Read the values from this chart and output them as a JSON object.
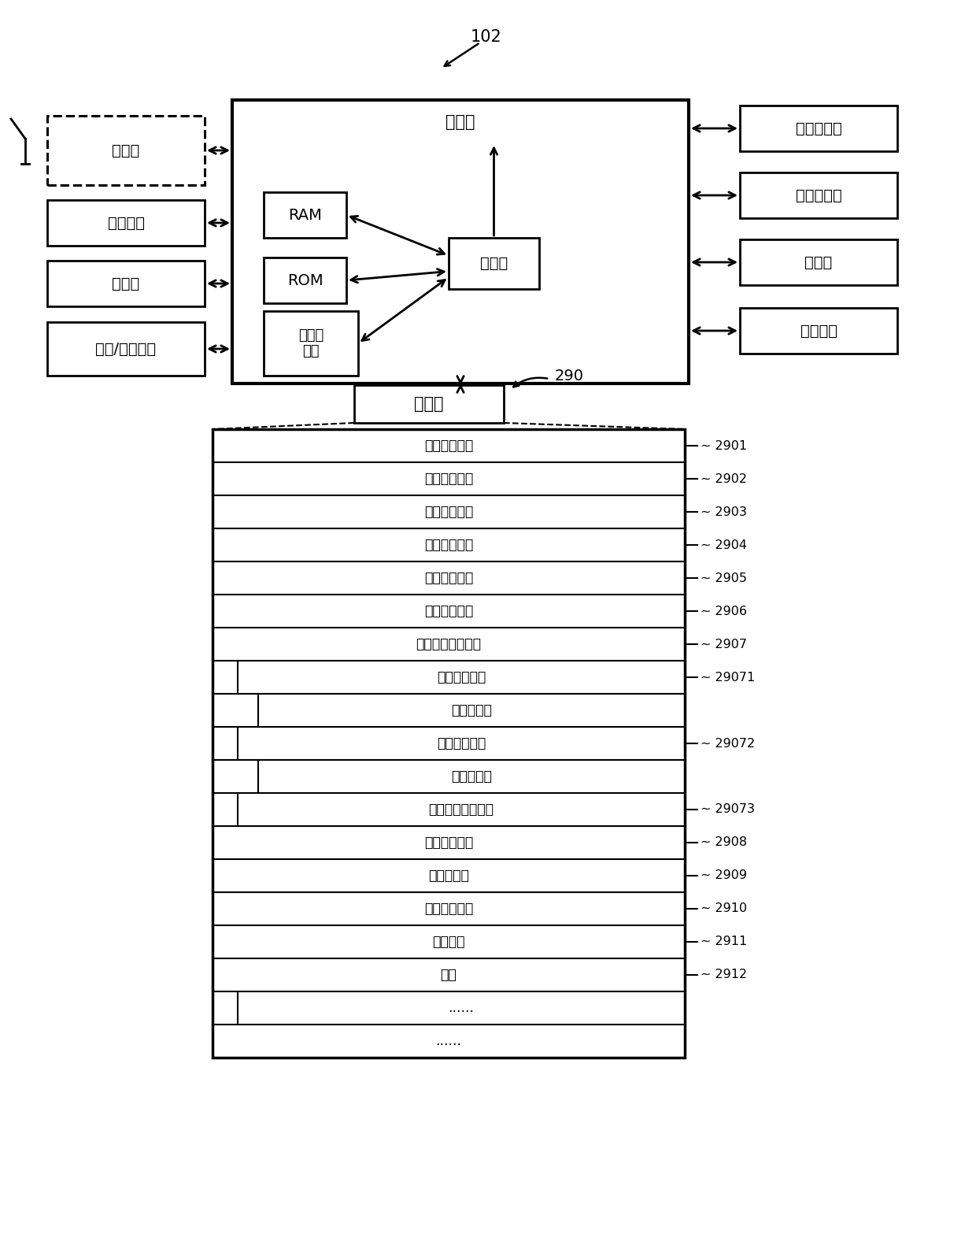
{
  "bg_color": "#ffffff",
  "label_102": "102",
  "label_290": "290",
  "controller_label": "控制器",
  "memory_label": "存储器",
  "ram_label": "RAM",
  "rom_label": "ROM",
  "graphic_proc_label": "图形处\n理器",
  "processor_label": "处理器",
  "left_boxes": [
    {
      "label": "调谐器",
      "dashed": true
    },
    {
      "label": "通信接口",
      "dashed": false
    },
    {
      "label": "检测器",
      "dashed": false
    },
    {
      "label": "输入/输出接口",
      "dashed": false
    }
  ],
  "right_boxes": [
    {
      "label": "视频处理器"
    },
    {
      "label": "音频处理器"
    },
    {
      "label": "显示器"
    },
    {
      "label": "音频输出"
    }
  ],
  "memory_modules": [
    {
      "label": "广播接收模块",
      "ref": "2901",
      "indent": 0
    },
    {
      "label": "频道控制模块",
      "ref": "2902",
      "indent": 0
    },
    {
      "label": "音量控制模块",
      "ref": "2903",
      "indent": 0
    },
    {
      "label": "图像控制模块",
      "ref": "2904",
      "indent": 0
    },
    {
      "label": "显示控制模块",
      "ref": "2905",
      "indent": 0
    },
    {
      "label": "音频控制模块",
      "ref": "2906",
      "indent": 0
    },
    {
      "label": "外部指令识别模块",
      "ref": "2907",
      "indent": 0
    },
    {
      "label": "图形识别模块",
      "ref": "29071",
      "indent": 1
    },
    {
      "label": "图形数据库",
      "ref": "",
      "indent": 2
    },
    {
      "label": "语音识别模块",
      "ref": "29072",
      "indent": 1
    },
    {
      "label": "语音数据库",
      "ref": "",
      "indent": 2
    },
    {
      "label": "按键指令识别模块",
      "ref": "29073",
      "indent": 1
    },
    {
      "label": "通信控制模块",
      "ref": "2908",
      "indent": 0
    },
    {
      "label": "光接收模块",
      "ref": "2909",
      "indent": 0
    },
    {
      "label": "电力控制模块",
      "ref": "2910",
      "indent": 0
    },
    {
      "label": "操作系统",
      "ref": "2911",
      "indent": 0
    },
    {
      "label": "应用",
      "ref": "2912",
      "indent": 0
    },
    {
      "label": "......",
      "ref": "",
      "indent": 1
    },
    {
      "label": "......",
      "ref": "",
      "indent": 0
    }
  ]
}
